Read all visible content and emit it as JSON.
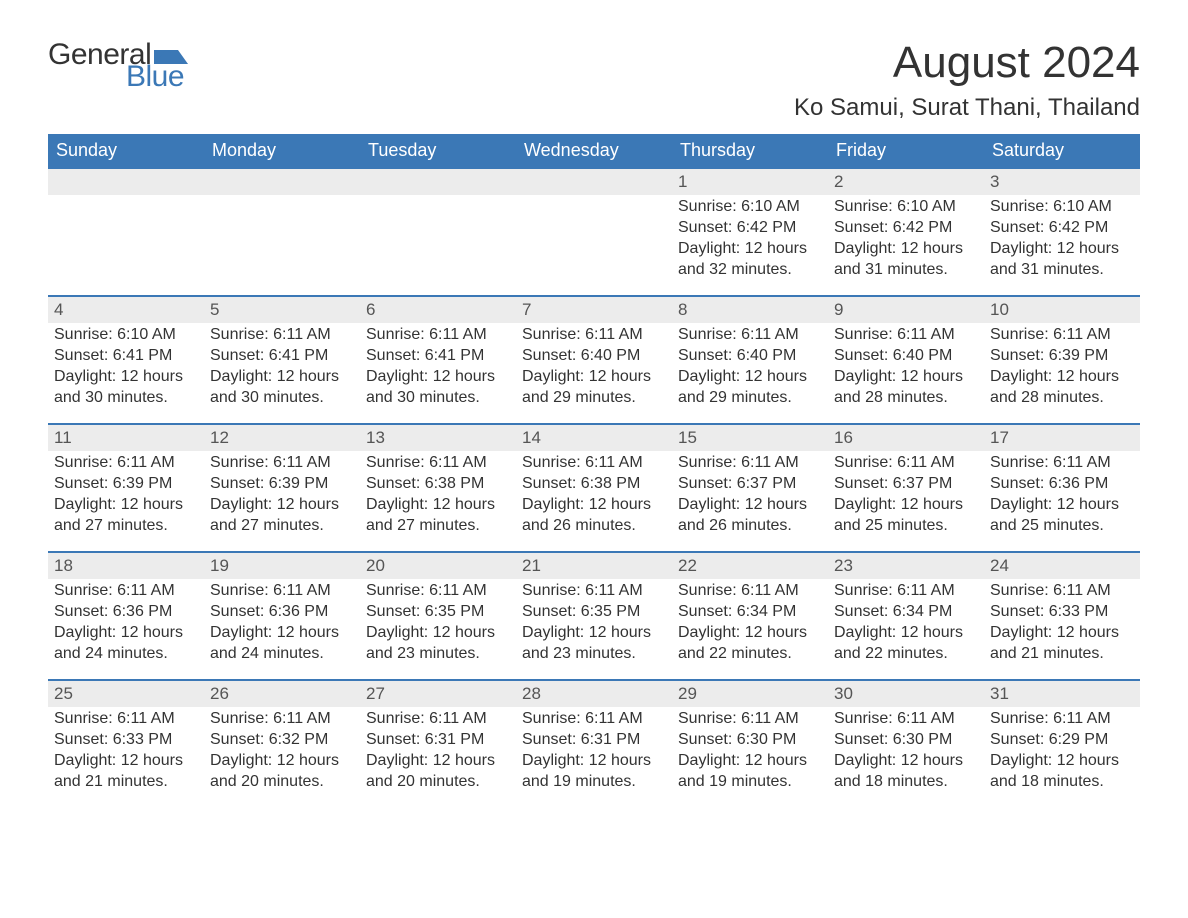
{
  "brand": {
    "word1": "General",
    "word2": "Blue",
    "word1_color": "#333333",
    "word2_color": "#3b78b6",
    "flag_color": "#3b78b6"
  },
  "title": "August 2024",
  "location": "Ko Samui, Surat Thani, Thailand",
  "colors": {
    "header_bg": "#3b78b6",
    "header_text": "#ffffff",
    "row_border": "#3b78b6",
    "daynum_bg": "#ececec",
    "text": "#333333",
    "page_bg": "#ffffff"
  },
  "weekdays": [
    "Sunday",
    "Monday",
    "Tuesday",
    "Wednesday",
    "Thursday",
    "Friday",
    "Saturday"
  ],
  "weeks": [
    [
      {
        "blank": true
      },
      {
        "blank": true
      },
      {
        "blank": true
      },
      {
        "blank": true
      },
      {
        "num": "1",
        "sunrise": "Sunrise: 6:10 AM",
        "sunset": "Sunset: 6:42 PM",
        "daylight1": "Daylight: 12 hours",
        "daylight2": "and 32 minutes."
      },
      {
        "num": "2",
        "sunrise": "Sunrise: 6:10 AM",
        "sunset": "Sunset: 6:42 PM",
        "daylight1": "Daylight: 12 hours",
        "daylight2": "and 31 minutes."
      },
      {
        "num": "3",
        "sunrise": "Sunrise: 6:10 AM",
        "sunset": "Sunset: 6:42 PM",
        "daylight1": "Daylight: 12 hours",
        "daylight2": "and 31 minutes."
      }
    ],
    [
      {
        "num": "4",
        "sunrise": "Sunrise: 6:10 AM",
        "sunset": "Sunset: 6:41 PM",
        "daylight1": "Daylight: 12 hours",
        "daylight2": "and 30 minutes."
      },
      {
        "num": "5",
        "sunrise": "Sunrise: 6:11 AM",
        "sunset": "Sunset: 6:41 PM",
        "daylight1": "Daylight: 12 hours",
        "daylight2": "and 30 minutes."
      },
      {
        "num": "6",
        "sunrise": "Sunrise: 6:11 AM",
        "sunset": "Sunset: 6:41 PM",
        "daylight1": "Daylight: 12 hours",
        "daylight2": "and 30 minutes."
      },
      {
        "num": "7",
        "sunrise": "Sunrise: 6:11 AM",
        "sunset": "Sunset: 6:40 PM",
        "daylight1": "Daylight: 12 hours",
        "daylight2": "and 29 minutes."
      },
      {
        "num": "8",
        "sunrise": "Sunrise: 6:11 AM",
        "sunset": "Sunset: 6:40 PM",
        "daylight1": "Daylight: 12 hours",
        "daylight2": "and 29 minutes."
      },
      {
        "num": "9",
        "sunrise": "Sunrise: 6:11 AM",
        "sunset": "Sunset: 6:40 PM",
        "daylight1": "Daylight: 12 hours",
        "daylight2": "and 28 minutes."
      },
      {
        "num": "10",
        "sunrise": "Sunrise: 6:11 AM",
        "sunset": "Sunset: 6:39 PM",
        "daylight1": "Daylight: 12 hours",
        "daylight2": "and 28 minutes."
      }
    ],
    [
      {
        "num": "11",
        "sunrise": "Sunrise: 6:11 AM",
        "sunset": "Sunset: 6:39 PM",
        "daylight1": "Daylight: 12 hours",
        "daylight2": "and 27 minutes."
      },
      {
        "num": "12",
        "sunrise": "Sunrise: 6:11 AM",
        "sunset": "Sunset: 6:39 PM",
        "daylight1": "Daylight: 12 hours",
        "daylight2": "and 27 minutes."
      },
      {
        "num": "13",
        "sunrise": "Sunrise: 6:11 AM",
        "sunset": "Sunset: 6:38 PM",
        "daylight1": "Daylight: 12 hours",
        "daylight2": "and 27 minutes."
      },
      {
        "num": "14",
        "sunrise": "Sunrise: 6:11 AM",
        "sunset": "Sunset: 6:38 PM",
        "daylight1": "Daylight: 12 hours",
        "daylight2": "and 26 minutes."
      },
      {
        "num": "15",
        "sunrise": "Sunrise: 6:11 AM",
        "sunset": "Sunset: 6:37 PM",
        "daylight1": "Daylight: 12 hours",
        "daylight2": "and 26 minutes."
      },
      {
        "num": "16",
        "sunrise": "Sunrise: 6:11 AM",
        "sunset": "Sunset: 6:37 PM",
        "daylight1": "Daylight: 12 hours",
        "daylight2": "and 25 minutes."
      },
      {
        "num": "17",
        "sunrise": "Sunrise: 6:11 AM",
        "sunset": "Sunset: 6:36 PM",
        "daylight1": "Daylight: 12 hours",
        "daylight2": "and 25 minutes."
      }
    ],
    [
      {
        "num": "18",
        "sunrise": "Sunrise: 6:11 AM",
        "sunset": "Sunset: 6:36 PM",
        "daylight1": "Daylight: 12 hours",
        "daylight2": "and 24 minutes."
      },
      {
        "num": "19",
        "sunrise": "Sunrise: 6:11 AM",
        "sunset": "Sunset: 6:36 PM",
        "daylight1": "Daylight: 12 hours",
        "daylight2": "and 24 minutes."
      },
      {
        "num": "20",
        "sunrise": "Sunrise: 6:11 AM",
        "sunset": "Sunset: 6:35 PM",
        "daylight1": "Daylight: 12 hours",
        "daylight2": "and 23 minutes."
      },
      {
        "num": "21",
        "sunrise": "Sunrise: 6:11 AM",
        "sunset": "Sunset: 6:35 PM",
        "daylight1": "Daylight: 12 hours",
        "daylight2": "and 23 minutes."
      },
      {
        "num": "22",
        "sunrise": "Sunrise: 6:11 AM",
        "sunset": "Sunset: 6:34 PM",
        "daylight1": "Daylight: 12 hours",
        "daylight2": "and 22 minutes."
      },
      {
        "num": "23",
        "sunrise": "Sunrise: 6:11 AM",
        "sunset": "Sunset: 6:34 PM",
        "daylight1": "Daylight: 12 hours",
        "daylight2": "and 22 minutes."
      },
      {
        "num": "24",
        "sunrise": "Sunrise: 6:11 AM",
        "sunset": "Sunset: 6:33 PM",
        "daylight1": "Daylight: 12 hours",
        "daylight2": "and 21 minutes."
      }
    ],
    [
      {
        "num": "25",
        "sunrise": "Sunrise: 6:11 AM",
        "sunset": "Sunset: 6:33 PM",
        "daylight1": "Daylight: 12 hours",
        "daylight2": "and 21 minutes."
      },
      {
        "num": "26",
        "sunrise": "Sunrise: 6:11 AM",
        "sunset": "Sunset: 6:32 PM",
        "daylight1": "Daylight: 12 hours",
        "daylight2": "and 20 minutes."
      },
      {
        "num": "27",
        "sunrise": "Sunrise: 6:11 AM",
        "sunset": "Sunset: 6:31 PM",
        "daylight1": "Daylight: 12 hours",
        "daylight2": "and 20 minutes."
      },
      {
        "num": "28",
        "sunrise": "Sunrise: 6:11 AM",
        "sunset": "Sunset: 6:31 PM",
        "daylight1": "Daylight: 12 hours",
        "daylight2": "and 19 minutes."
      },
      {
        "num": "29",
        "sunrise": "Sunrise: 6:11 AM",
        "sunset": "Sunset: 6:30 PM",
        "daylight1": "Daylight: 12 hours",
        "daylight2": "and 19 minutes."
      },
      {
        "num": "30",
        "sunrise": "Sunrise: 6:11 AM",
        "sunset": "Sunset: 6:30 PM",
        "daylight1": "Daylight: 12 hours",
        "daylight2": "and 18 minutes."
      },
      {
        "num": "31",
        "sunrise": "Sunrise: 6:11 AM",
        "sunset": "Sunset: 6:29 PM",
        "daylight1": "Daylight: 12 hours",
        "daylight2": "and 18 minutes."
      }
    ]
  ]
}
